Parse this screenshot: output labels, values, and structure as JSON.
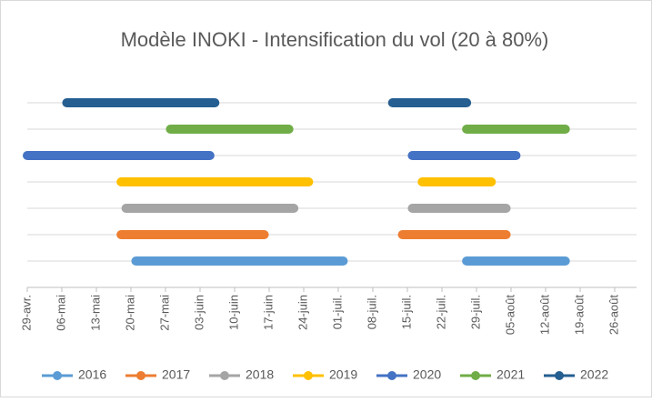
{
  "chart_data": {
    "type": "range-bar",
    "title": "Modèle INOKI - Intensification du vol (20 à 80%)",
    "xlim": [
      0,
      126
    ],
    "xticks": [
      {
        "value": 0,
        "label": "29-avr."
      },
      {
        "value": 7,
        "label": "06-mai"
      },
      {
        "value": 14,
        "label": "13-mai"
      },
      {
        "value": 21,
        "label": "20-mai"
      },
      {
        "value": 28,
        "label": "27-mai"
      },
      {
        "value": 35,
        "label": "03-juin"
      },
      {
        "value": 42,
        "label": "10-juin"
      },
      {
        "value": 49,
        "label": "17-juin"
      },
      {
        "value": 56,
        "label": "24-juin"
      },
      {
        "value": 63,
        "label": "01-juil."
      },
      {
        "value": 70,
        "label": "08-juil."
      },
      {
        "value": 77,
        "label": "15-juil."
      },
      {
        "value": 84,
        "label": "22-juil."
      },
      {
        "value": 91,
        "label": "29-juil."
      },
      {
        "value": 98,
        "label": "05-août"
      },
      {
        "value": 105,
        "label": "12-août"
      },
      {
        "value": 112,
        "label": "19-août"
      },
      {
        "value": 119,
        "label": "26-août"
      }
    ],
    "grid": true,
    "legend": "bottom",
    "series": [
      {
        "name": "2016",
        "color": "#5b9bd5",
        "start": [
          22,
          89
        ],
        "end": [
          64,
          109
        ]
      },
      {
        "name": "2017",
        "color": "#ed7d31",
        "start": [
          19,
          76
        ],
        "end": [
          48,
          97
        ]
      },
      {
        "name": "2018",
        "color": "#a5a5a5",
        "start": [
          20,
          78
        ],
        "end": [
          54,
          97
        ]
      },
      {
        "name": "2019",
        "color": "#ffc000",
        "start": [
          19,
          80
        ],
        "end": [
          57,
          94
        ]
      },
      {
        "name": "2020",
        "color": "#4472c4",
        "start": [
          0,
          78
        ],
        "end": [
          37,
          99
        ]
      },
      {
        "name": "2021",
        "color": "#70ad47",
        "start": [
          29,
          89
        ],
        "end": [
          53,
          109
        ]
      },
      {
        "name": "2022",
        "color": "#255e91",
        "start": [
          8,
          74
        ],
        "end": [
          38,
          89
        ]
      }
    ]
  }
}
